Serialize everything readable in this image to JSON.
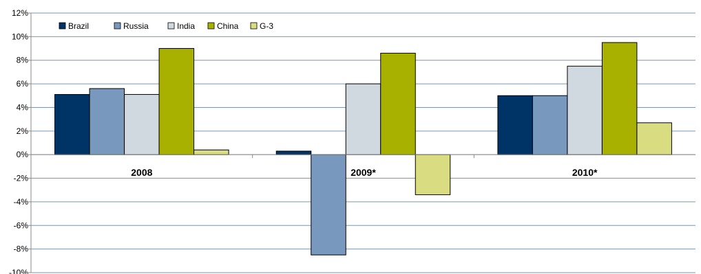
{
  "chart_data": {
    "type": "bar",
    "title": "",
    "xlabel": "",
    "ylabel": "",
    "categories": [
      "2008",
      "2009*",
      "2010*"
    ],
    "series": [
      {
        "name": "Brazil",
        "color": "#003366",
        "values": [
          5.1,
          0.3,
          5.0
        ]
      },
      {
        "name": "Russia",
        "color": "#7899bd",
        "values": [
          5.6,
          -8.5,
          5.0
        ]
      },
      {
        "name": "India",
        "color": "#d0d9e0",
        "values": [
          5.1,
          6.0,
          7.5
        ]
      },
      {
        "name": "China",
        "color": "#a8b000",
        "values": [
          9.0,
          8.6,
          9.5
        ]
      },
      {
        "name": "G-3",
        "color": "#d9dc80",
        "values": [
          0.4,
          -3.4,
          2.7
        ]
      }
    ],
    "ylim": [
      -10,
      12
    ],
    "yticks": [
      "-10%",
      "-8%",
      "-6%",
      "-4%",
      "-2%",
      "0%",
      "2%",
      "4%",
      "6%",
      "8%",
      "10%",
      "12%"
    ],
    "grid": true,
    "legend_position": "top-left"
  }
}
